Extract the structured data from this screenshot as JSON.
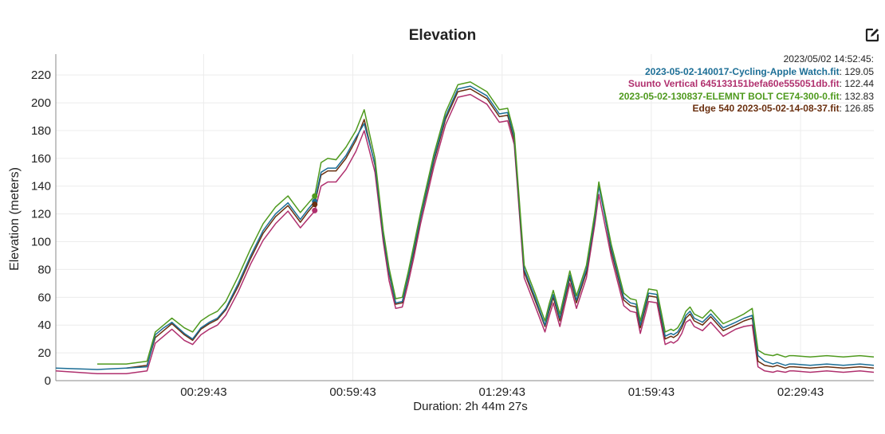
{
  "chart_data": {
    "type": "line",
    "title": "Elevation",
    "xlabel": "Duration: 2h 44m 27s",
    "ylabel": "Elevation (meters)",
    "ylim": [
      0,
      235
    ],
    "xlim_seconds": [
      0,
      9867
    ],
    "x_tick_labels": [
      "00:29:43",
      "00:59:43",
      "01:29:43",
      "01:59:43",
      "02:29:43"
    ],
    "y_ticks": [
      0,
      20,
      40,
      60,
      80,
      100,
      120,
      140,
      160,
      180,
      200,
      220
    ],
    "grid": true,
    "legend_position": "top-right",
    "hover": {
      "timestamp": "2023/05/02 14:52:45:",
      "x_seconds": 3123
    },
    "series": [
      {
        "name": "2023-05-02-140017-Cycling-Apple Watch.fit",
        "readout": "129.05",
        "color": "#1c6e96",
        "x": [
          0,
          500,
          850,
          1100,
          1200,
          1300,
          1400,
          1550,
          1650,
          1750,
          1850,
          1950,
          2050,
          2200,
          2350,
          2500,
          2650,
          2800,
          2950,
          3050,
          3123,
          3200,
          3280,
          3380,
          3500,
          3620,
          3720,
          3850,
          3950,
          4020,
          4100,
          4180,
          4250,
          4320,
          4400,
          4560,
          4700,
          4850,
          5000,
          5200,
          5350,
          5450,
          5530,
          5650,
          5780,
          5900,
          5950,
          6000,
          6080,
          6200,
          6280,
          6400,
          6500,
          6550,
          6700,
          6850,
          6930,
          7000,
          7050,
          7150,
          7250,
          7350,
          7420,
          7450,
          7500,
          7550,
          7600,
          7650,
          7700,
          7800,
          7900,
          8050,
          8200,
          8300,
          8400,
          8470,
          8550,
          8650,
          8700,
          8800,
          8850,
          8900,
          9100,
          9300,
          9500,
          9700,
          9867
        ],
        "y": [
          9,
          8,
          9,
          10,
          33,
          38,
          42,
          34,
          30,
          38,
          42,
          45,
          52,
          70,
          90,
          108,
          120,
          128,
          116,
          124,
          129,
          150,
          153,
          153,
          162,
          175,
          185,
          156,
          105,
          78,
          56,
          57,
          75,
          95,
          118,
          160,
          190,
          210,
          212,
          205,
          192,
          193,
          175,
          80,
          60,
          40,
          52,
          62,
          45,
          76,
          58,
          80,
          117,
          140,
          95,
          60,
          56,
          55,
          40,
          63,
          62,
          32,
          34,
          33,
          35,
          40,
          47,
          50,
          45,
          42,
          48,
          38,
          42,
          45,
          47,
          18,
          14,
          12,
          13,
          11,
          12,
          12,
          11,
          12,
          11,
          12,
          11
        ]
      },
      {
        "name": "Suunto Vertical 645133151befa60e555051db.fit",
        "readout": "122.44",
        "color": "#b0306e",
        "x": [
          0,
          500,
          850,
          1100,
          1200,
          1300,
          1400,
          1550,
          1650,
          1750,
          1850,
          1950,
          2050,
          2200,
          2350,
          2500,
          2650,
          2800,
          2950,
          3050,
          3123,
          3200,
          3280,
          3380,
          3500,
          3620,
          3720,
          3850,
          3950,
          4020,
          4100,
          4180,
          4250,
          4320,
          4400,
          4560,
          4700,
          4850,
          5000,
          5200,
          5350,
          5450,
          5530,
          5650,
          5780,
          5900,
          5950,
          6000,
          6080,
          6200,
          6280,
          6400,
          6500,
          6550,
          6700,
          6850,
          6930,
          7000,
          7050,
          7150,
          7250,
          7350,
          7420,
          7450,
          7500,
          7550,
          7600,
          7650,
          7700,
          7800,
          7900,
          8050,
          8200,
          8300,
          8400,
          8470,
          8550,
          8650,
          8700,
          8800,
          8850,
          8900,
          9100,
          9300,
          9500,
          9700,
          9867
        ],
        "y": [
          7,
          5,
          5,
          7,
          27,
          32,
          37,
          29,
          26,
          33,
          37,
          40,
          47,
          64,
          84,
          101,
          113,
          122,
          110,
          117,
          122,
          140,
          143,
          143,
          152,
          165,
          180,
          150,
          100,
          72,
          52,
          53,
          70,
          89,
          113,
          154,
          184,
          204,
          206,
          199,
          186,
          187,
          170,
          74,
          54,
          35,
          46,
          56,
          39,
          70,
          52,
          74,
          112,
          134,
          89,
          54,
          50,
          49,
          34,
          57,
          56,
          26,
          28,
          27,
          29,
          34,
          42,
          44,
          39,
          36,
          42,
          32,
          37,
          39,
          40,
          10,
          7,
          6,
          7,
          6,
          7,
          7,
          6,
          7,
          6,
          7,
          6
        ]
      },
      {
        "name": "2023-05-02-130837-ELEMNT BOLT CE74-300-0.fit",
        "readout": "132.83",
        "color": "#4f9a1e",
        "x": [
          500,
          850,
          1100,
          1200,
          1300,
          1400,
          1550,
          1650,
          1750,
          1850,
          1950,
          2050,
          2200,
          2350,
          2500,
          2650,
          2800,
          2950,
          3050,
          3123,
          3200,
          3280,
          3380,
          3500,
          3620,
          3720,
          3850,
          3950,
          4020,
          4100,
          4180,
          4250,
          4320,
          4400,
          4560,
          4700,
          4850,
          5000,
          5200,
          5350,
          5450,
          5530,
          5650,
          5780,
          5900,
          5950,
          6000,
          6080,
          6200,
          6280,
          6400,
          6500,
          6550,
          6700,
          6850,
          6930,
          7000,
          7050,
          7150,
          7250,
          7350,
          7420,
          7450,
          7500,
          7550,
          7600,
          7650,
          7700,
          7800,
          7900,
          8050,
          8200,
          8300,
          8400,
          8470,
          8550,
          8650,
          8700,
          8800,
          8850,
          8900,
          9100,
          9300,
          9500,
          9700,
          9867
        ],
        "y": [
          12,
          12,
          14,
          35,
          40,
          45,
          38,
          35,
          43,
          47,
          50,
          57,
          75,
          95,
          113,
          125,
          133,
          121,
          128,
          133,
          157,
          160,
          159,
          168,
          180,
          195,
          160,
          108,
          81,
          59,
          60,
          78,
          98,
          121,
          163,
          193,
          213,
          215,
          208,
          195,
          196,
          178,
          83,
          63,
          43,
          55,
          65,
          48,
          79,
          61,
          83,
          120,
          143,
          98,
          63,
          59,
          58,
          43,
          66,
          65,
          35,
          37,
          36,
          38,
          43,
          50,
          53,
          48,
          45,
          51,
          41,
          45,
          48,
          52,
          22,
          19,
          18,
          19,
          17,
          18,
          18,
          17,
          18,
          17,
          18,
          17
        ]
      },
      {
        "name": "Edge 540 2023-05-02-14-08-37.fit",
        "readout": "126.85",
        "color": "#6a2f0f",
        "x": [
          850,
          1100,
          1200,
          1300,
          1400,
          1550,
          1650,
          1750,
          1850,
          1950,
          2050,
          2200,
          2350,
          2500,
          2650,
          2800,
          2950,
          3050,
          3123,
          3200,
          3280,
          3380,
          3500,
          3620,
          3720,
          3850,
          3950,
          4020,
          4100,
          4180,
          4250,
          4320,
          4400,
          4560,
          4700,
          4850,
          5000,
          5200,
          5350,
          5450,
          5530,
          5650,
          5780,
          5900,
          5950,
          6000,
          6080,
          6200,
          6280,
          6400,
          6500,
          6550,
          6700,
          6850,
          6930,
          7000,
          7050,
          7150,
          7250,
          7350,
          7420,
          7450,
          7500,
          7550,
          7600,
          7650,
          7700,
          7800,
          7900,
          8050,
          8200,
          8300,
          8400,
          8470,
          8550,
          8650,
          8700,
          8800,
          8850,
          8900,
          9100,
          9300,
          9500,
          9700,
          9867
        ],
        "y": [
          9,
          11,
          31,
          36,
          41,
          33,
          29,
          37,
          41,
          44,
          51,
          68,
          88,
          106,
          118,
          126,
          114,
          122,
          127,
          148,
          151,
          151,
          160,
          173,
          188,
          155,
          104,
          77,
          55,
          56,
          74,
          93,
          117,
          158,
          188,
          208,
          210,
          203,
          190,
          191,
          173,
          78,
          58,
          39,
          50,
          60,
          43,
          74,
          56,
          78,
          116,
          142,
          93,
          58,
          54,
          53,
          38,
          61,
          60,
          30,
          32,
          31,
          33,
          38,
          45,
          48,
          43,
          40,
          46,
          36,
          40,
          43,
          45,
          14,
          11,
          10,
          11,
          9,
          10,
          10,
          9,
          10,
          9,
          10,
          9
        ]
      }
    ]
  }
}
